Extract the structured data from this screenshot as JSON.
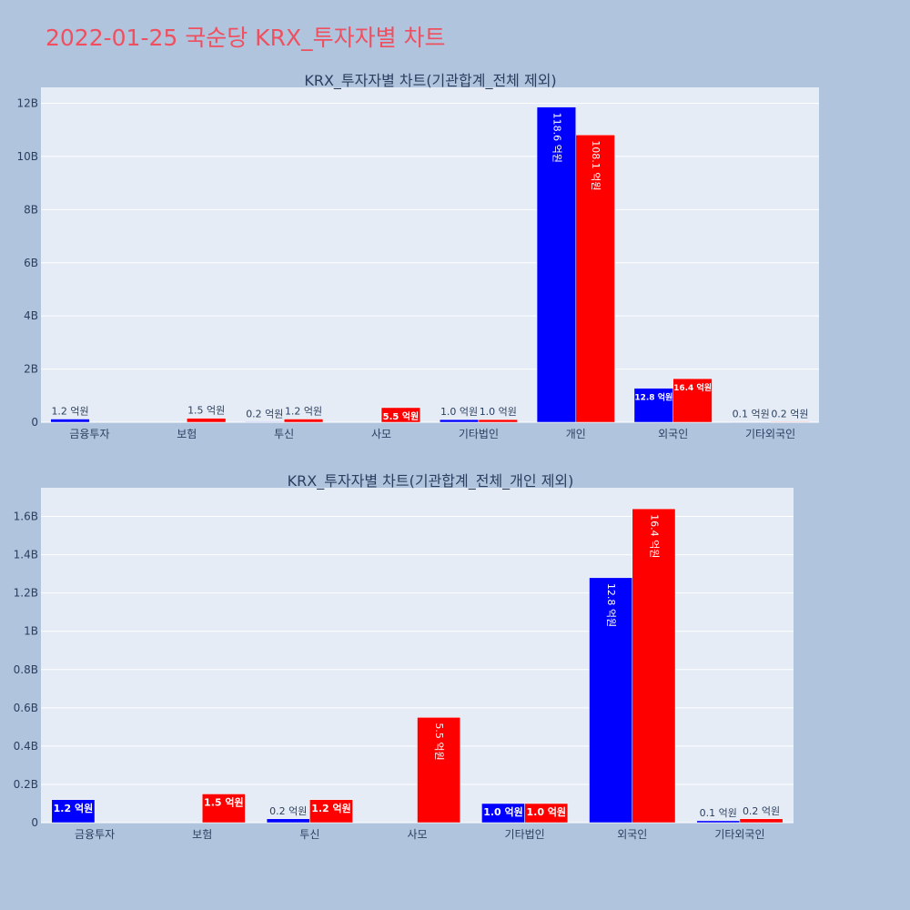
{
  "page": {
    "title": "2022-01-25 국순당 KRX_투자자별 차트",
    "colors": {
      "background": "#b0c4de",
      "plot_bg": "#e5ecf6",
      "title": "#ef5060",
      "buy": "#0000ff",
      "sell": "#ff0000"
    }
  },
  "chart_data": [
    {
      "type": "bar",
      "title": "KRX_투자자별 차트(기관합계_전체 제외)",
      "categories": [
        "금융투자",
        "보험",
        "투신",
        "사모",
        "기타법인",
        "개인",
        "외국인",
        "기타외국인"
      ],
      "ylim": [
        0,
        12600000000
      ],
      "yticks": [
        0,
        2000000000,
        4000000000,
        6000000000,
        8000000000,
        10000000000,
        12000000000
      ],
      "ytick_labels": [
        "0",
        "2B",
        "4B",
        "6B",
        "8B",
        "10B",
        "12B"
      ],
      "series": [
        {
          "color": "#0000ff",
          "values": [
            120000000,
            0,
            20000000,
            0,
            100000000,
            11860000000,
            1280000000,
            10000000
          ],
          "labels": [
            "1.2 억원",
            "",
            "0.2 억원",
            "",
            "1.0 억원",
            "118.6 억원",
            "12.8 억원",
            "0.1 억원"
          ]
        },
        {
          "color": "#ff0000",
          "values": [
            0,
            150000000,
            120000000,
            550000000,
            100000000,
            10810000000,
            1640000000,
            20000000
          ],
          "labels": [
            "",
            "1.5 억원",
            "1.2 억원",
            "5.5 억원",
            "1.0 억원",
            "108.1 억원",
            "16.4 억원",
            "0.2 억원"
          ]
        }
      ],
      "grid": true
    },
    {
      "type": "bar",
      "title": "KRX_투자자별 차트(기관합계_전체_개인 제외)",
      "categories": [
        "금융투자",
        "보험",
        "투신",
        "사모",
        "기타법인",
        "외국인",
        "기타외국인"
      ],
      "ylim": [
        0,
        1750000000
      ],
      "yticks": [
        0,
        200000000,
        400000000,
        600000000,
        800000000,
        1000000000,
        1200000000,
        1400000000,
        1600000000
      ],
      "ytick_labels": [
        "0",
        "0.2B",
        "0.4B",
        "0.6B",
        "0.8B",
        "1B",
        "1.2B",
        "1.4B",
        "1.6B"
      ],
      "series": [
        {
          "color": "#0000ff",
          "values": [
            120000000,
            0,
            20000000,
            0,
            100000000,
            1280000000,
            10000000
          ],
          "labels": [
            "1.2 억원",
            "",
            "0.2 억원",
            "",
            "1.0 억원",
            "12.8 억원",
            "0.1 억원"
          ]
        },
        {
          "color": "#ff0000",
          "values": [
            0,
            150000000,
            120000000,
            550000000,
            100000000,
            1640000000,
            20000000
          ],
          "labels": [
            "",
            "1.5 억원",
            "1.2 억원",
            "5.5 억원",
            "1.0 억원",
            "16.4 억원",
            "0.2 억원"
          ]
        }
      ],
      "grid": true
    }
  ]
}
